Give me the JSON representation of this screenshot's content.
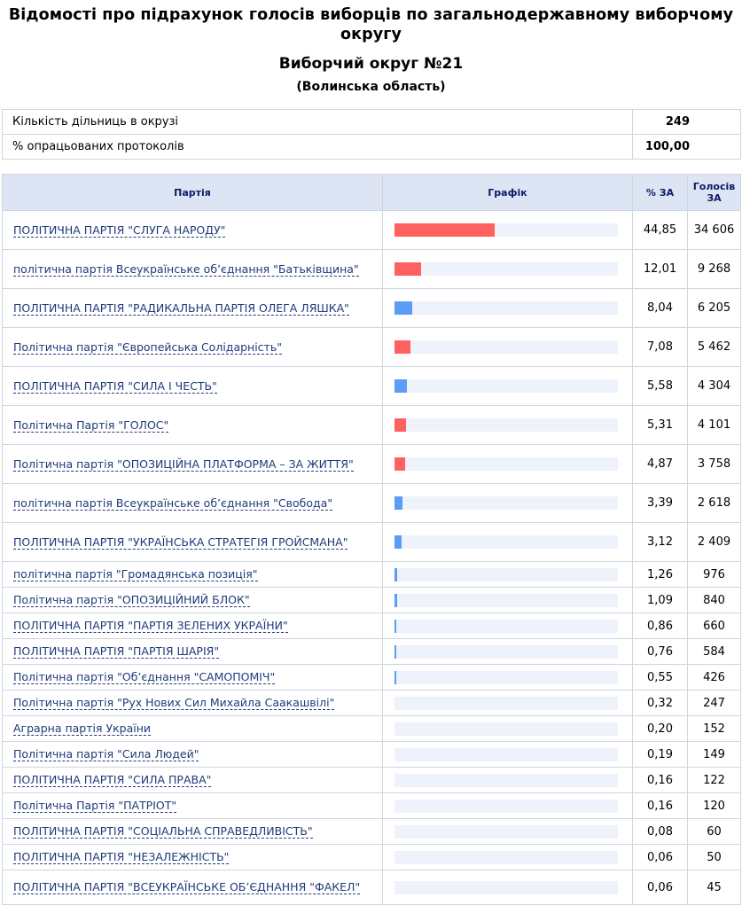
{
  "header": {
    "title": "Відомості про підрахунок голосів виборців по загальнодержавному виборчому округу",
    "district": "Виборчий округ №21",
    "region": "(Волинська область)"
  },
  "summary": [
    {
      "label": "Кількість дільниць в окрузі",
      "value": "249"
    },
    {
      "label": "% опрацьованих протоколів",
      "value": "100,00"
    }
  ],
  "table": {
    "col_party": "Партія",
    "col_graph": "Графік",
    "col_pct": "% ЗА",
    "col_votes": "Голосів ЗА"
  },
  "colors": {
    "red": "#ff6060",
    "blue": "#5b9cf6"
  },
  "rows": [
    {
      "party": "ПОЛІТИЧНА ПАРТІЯ \"СЛУГА НАРОДУ\"",
      "pct": "44,85",
      "pct_value": 44.85,
      "votes": "34 606",
      "bar_color": "red"
    },
    {
      "party": "політична партія Всеукраїнське об’єднання \"Батьківщина\"",
      "pct": "12,01",
      "pct_value": 12.01,
      "votes": "9 268",
      "bar_color": "red"
    },
    {
      "party": "ПОЛІТИЧНА ПАРТІЯ \"РАДИКАЛЬНА ПАРТІЯ ОЛЕГА ЛЯШКА\"",
      "pct": "8,04",
      "pct_value": 8.04,
      "votes": "6 205",
      "bar_color": "blue"
    },
    {
      "party": "Політична партія \"Європейська Солідарність\"",
      "pct": "7,08",
      "pct_value": 7.08,
      "votes": "5 462",
      "bar_color": "red"
    },
    {
      "party": "ПОЛІТИЧНА ПАРТІЯ \"СИЛА І ЧЕСТЬ\"",
      "pct": "5,58",
      "pct_value": 5.58,
      "votes": "4 304",
      "bar_color": "blue"
    },
    {
      "party": "Політична Партія \"ГОЛОС\"",
      "pct": "5,31",
      "pct_value": 5.31,
      "votes": "4 101",
      "bar_color": "red"
    },
    {
      "party": "Політична партія \"ОПОЗИЦІЙНА ПЛАТФОРМА – ЗА ЖИТТЯ\"",
      "pct": "4,87",
      "pct_value": 4.87,
      "votes": "3 758",
      "bar_color": "red"
    },
    {
      "party": "політична партія Всеукраїнське об’єднання \"Свобода\"",
      "pct": "3,39",
      "pct_value": 3.39,
      "votes": "2 618",
      "bar_color": "blue"
    },
    {
      "party": "ПОЛІТИЧНА ПАРТІЯ \"УКРАЇНСЬКА СТРАТЕГІЯ ГРОЙСМАНА\"",
      "pct": "3,12",
      "pct_value": 3.12,
      "votes": "2 409",
      "bar_color": "blue"
    },
    {
      "party": "політична партія \"Громадянська позиція\"",
      "pct": "1,26",
      "pct_value": 1.26,
      "votes": "976",
      "bar_color": "blue"
    },
    {
      "party": "Політична партія \"ОПОЗИЦІЙНИЙ БЛОК\"",
      "pct": "1,09",
      "pct_value": 1.09,
      "votes": "840",
      "bar_color": "blue"
    },
    {
      "party": "ПОЛІТИЧНА ПАРТІЯ \"ПАРТІЯ ЗЕЛЕНИХ УКРАЇНИ\"",
      "pct": "0,86",
      "pct_value": 0.86,
      "votes": "660",
      "bar_color": "blue"
    },
    {
      "party": "ПОЛІТИЧНА ПАРТІЯ \"ПАРТІЯ ШАРІЯ\"",
      "pct": "0,76",
      "pct_value": 0.76,
      "votes": "584",
      "bar_color": "blue"
    },
    {
      "party": "Політична партія \"Об’єднання \"САМОПОМІЧ\"",
      "pct": "0,55",
      "pct_value": 0.55,
      "votes": "426",
      "bar_color": "blue"
    },
    {
      "party": "Політична партія \"Рух Нових Сил Михайла Саакашвілі\"",
      "pct": "0,32",
      "pct_value": 0.32,
      "votes": "247",
      "bar_color": "blue"
    },
    {
      "party": "Аграрна партія України",
      "pct": "0,20",
      "pct_value": 0.2,
      "votes": "152",
      "bar_color": "blue"
    },
    {
      "party": "Політична партія \"Сила Людей\"",
      "pct": "0,19",
      "pct_value": 0.19,
      "votes": "149",
      "bar_color": "blue"
    },
    {
      "party": "ПОЛІТИЧНА ПАРТІЯ \"СИЛА ПРАВА\"",
      "pct": "0,16",
      "pct_value": 0.16,
      "votes": "122",
      "bar_color": "blue"
    },
    {
      "party": "Політична Партія \"ПАТРІОТ\"",
      "pct": "0,16",
      "pct_value": 0.16,
      "votes": "120",
      "bar_color": "blue"
    },
    {
      "party": "ПОЛІТИЧНА ПАРТІЯ \"СОЦІАЛЬНА СПРАВЕДЛИВІСТЬ\"",
      "pct": "0,08",
      "pct_value": 0.08,
      "votes": "60",
      "bar_color": "blue"
    },
    {
      "party": "ПОЛІТИЧНА ПАРТІЯ \"НЕЗАЛЕЖНІСТЬ\"",
      "pct": "0,06",
      "pct_value": 0.06,
      "votes": "50",
      "bar_color": "blue"
    },
    {
      "party": "ПОЛІТИЧНА ПАРТІЯ \"ВСЕУКРАЇНСЬКЕ ОБ’ЄДНАННЯ \"ФАКЕЛ\"",
      "pct": "0,06",
      "pct_value": 0.06,
      "votes": "45",
      "bar_color": "blue"
    }
  ]
}
